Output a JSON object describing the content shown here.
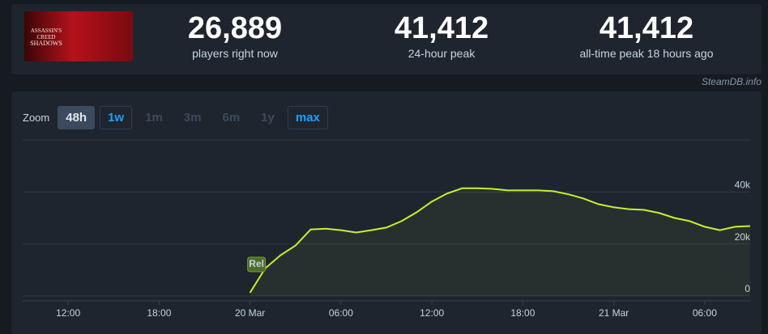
{
  "header": {
    "logo": [
      "ASSASSIN'S",
      "CREED",
      "SHADOWS"
    ],
    "stats": [
      {
        "value": "26,889",
        "label": "players right now"
      },
      {
        "value": "41,412",
        "label": "24-hour peak"
      },
      {
        "value": "41,412",
        "label": "all-time peak 18 hours ago"
      }
    ],
    "credit": "SteamDB.info"
  },
  "zoom": {
    "label": "Zoom",
    "options": [
      "48h",
      "1w",
      "1m",
      "3m",
      "6m",
      "1y",
      "max"
    ]
  },
  "chart_data": {
    "type": "line",
    "color": "#c4f22b",
    "x": [
      0,
      1,
      2,
      3,
      4,
      5,
      6,
      7,
      8,
      9,
      10,
      11,
      12,
      13,
      14,
      15,
      16,
      17,
      18,
      19,
      20,
      21,
      22,
      23,
      24,
      25,
      26,
      27,
      28,
      29,
      30,
      31,
      32,
      33
    ],
    "values": [
      1250,
      10600,
      15600,
      19400,
      25600,
      25900,
      25300,
      24400,
      25300,
      26300,
      28800,
      32200,
      36300,
      39400,
      41412,
      41400,
      41200,
      40600,
      40600,
      40600,
      40300,
      39100,
      37500,
      35300,
      34100,
      33400,
      33100,
      31900,
      30000,
      28800,
      26600,
      25300,
      26600,
      26889
    ],
    "xlim": [
      -15,
      33
    ],
    "xticks": [
      {
        "value": -12,
        "label": "12:00"
      },
      {
        "value": -6,
        "label": "18:00"
      },
      {
        "value": 0,
        "label": "20 Mar"
      },
      {
        "value": 6,
        "label": "06:00"
      },
      {
        "value": 12,
        "label": "12:00"
      },
      {
        "value": 18,
        "label": "18:00"
      },
      {
        "value": 24,
        "label": "21 Mar"
      },
      {
        "value": 30,
        "label": "06:00"
      }
    ],
    "ylim": [
      0,
      60000
    ],
    "yticks": [
      0,
      {
        "value": 20000,
        "label": "20k"
      },
      {
        "value": 40000,
        "label": "40k"
      }
    ],
    "grid": true,
    "annotation": {
      "x": 0,
      "label": "Rel"
    }
  }
}
